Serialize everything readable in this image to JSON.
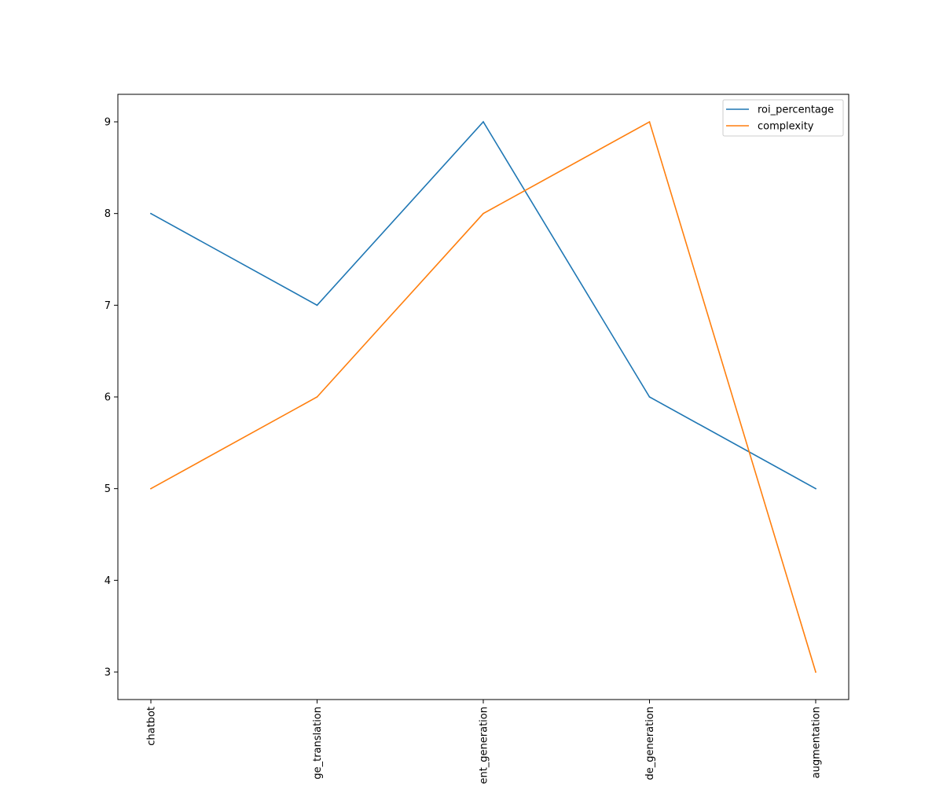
{
  "chart_data": {
    "type": "line",
    "categories": [
      "chatbot",
      "language_translation",
      "content_generation",
      "code_generation",
      "data_augmentation"
    ],
    "category_labels_visible": [
      "chatbot",
      "ge_translation",
      "ent_generation",
      "de_generation",
      "augmentation"
    ],
    "series": [
      {
        "name": "roi_percentage",
        "values": [
          8,
          7,
          9,
          6,
          5
        ],
        "color": "#1f77b4"
      },
      {
        "name": "complexity",
        "values": [
          5,
          6,
          8,
          9,
          3
        ],
        "color": "#ff7f0e"
      }
    ],
    "y_ticks": [
      3,
      4,
      5,
      6,
      7,
      8,
      9
    ],
    "ylim": [
      2.7,
      9.3
    ],
    "title": "",
    "xlabel": "",
    "ylabel": "",
    "legend_position": "top-right",
    "grid": false
  }
}
